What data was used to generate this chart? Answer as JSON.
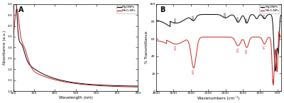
{
  "panel_A": {
    "title": "A",
    "xlabel": "Wavelength (nm)",
    "ylabel": "Absorbance (a.u.)",
    "xlim": [
      200,
      800
    ],
    "ylim": [
      1.0,
      5.0
    ],
    "yticks": [
      1.0,
      1.5,
      2.0,
      2.5,
      3.0,
      3.5,
      4.0,
      4.5,
      5.0
    ],
    "xticks": [
      200,
      300,
      400,
      500,
      600,
      700,
      800
    ],
    "legend": [
      "MgONPs",
      "MnO₂NPs"
    ],
    "colors": [
      "black",
      "#cc2222"
    ]
  },
  "panel_B": {
    "title": "B",
    "xlabel": "Wavenumbers (cm⁻¹)",
    "ylabel": "% Transmittance",
    "xlim": [
      4000,
      400
    ],
    "ylim": [
      0,
      100
    ],
    "yticks": [
      0,
      20,
      40,
      60,
      80,
      100
    ],
    "xticks": [
      4000,
      3500,
      3000,
      2500,
      2000,
      1500,
      1000,
      500
    ],
    "legend": [
      "MgONPs",
      "MnO₂NPs"
    ],
    "colors": [
      "black",
      "#cc2222"
    ],
    "ann_black": [
      {
        "x": 3430,
        "label": "3430"
      },
      {
        "x": 2925,
        "label": "2925"
      },
      {
        "x": 2000,
        "label": "2000"
      },
      {
        "x": 1635,
        "label": "1635"
      },
      {
        "x": 1380,
        "label": "1380"
      },
      {
        "x": 875,
        "label": "875"
      }
    ],
    "ann_red": [
      {
        "x": 3430,
        "label": "3430"
      },
      {
        "x": 2920,
        "label": "2920"
      },
      {
        "x": 1635,
        "label": "1635"
      },
      {
        "x": 1385,
        "label": "1385"
      },
      {
        "x": 875,
        "label": "875"
      },
      {
        "x": 600,
        "label": "600"
      }
    ]
  }
}
